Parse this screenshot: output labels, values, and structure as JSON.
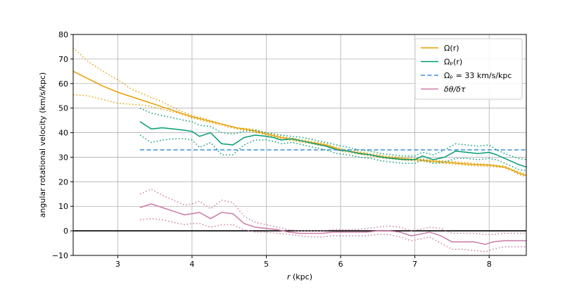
{
  "chart_data": {
    "type": "line",
    "xlabel": "r (kpc)",
    "ylabel": "angular rotational velocity (km/s/kpc)",
    "xlim": [
      2.4,
      8.5
    ],
    "ylim": [
      -10,
      80
    ],
    "xticks": [
      3,
      4,
      5,
      6,
      7,
      8
    ],
    "yticks": [
      -10,
      0,
      10,
      20,
      30,
      40,
      50,
      60,
      70,
      80
    ],
    "grid": true,
    "legend_position": "top-right",
    "colors": {
      "omega": "#e69f00",
      "omega_p": "#009e73",
      "omega_p_const": "#3a8fd8",
      "dtheta": "#cc79a7",
      "zero_line": "#000000",
      "grid": "#b0b0b0"
    },
    "series": [
      {
        "key": "omega",
        "name": "Ω(r)",
        "style": "solid",
        "x": [
          2.4,
          2.6,
          2.8,
          3.0,
          3.2,
          3.4,
          3.6,
          3.8,
          4.0,
          4.2,
          4.4,
          4.6,
          4.8,
          5.0,
          5.2,
          5.4,
          5.6,
          5.8,
          6.0,
          6.2,
          6.4,
          6.6,
          6.8,
          7.0,
          7.2,
          7.4,
          7.6,
          7.8,
          8.0,
          8.2,
          8.3,
          8.4,
          8.5
        ],
        "y": [
          65,
          62,
          59,
          56.5,
          54.5,
          52.5,
          50.5,
          48.5,
          46.5,
          45,
          43.5,
          42,
          41,
          39.5,
          38,
          37,
          36,
          35,
          33,
          32,
          31,
          30,
          29.5,
          29,
          28.5,
          28,
          27.5,
          27,
          26.8,
          26,
          25,
          23.5,
          22.5
        ]
      },
      {
        "key": "omega_upper",
        "style": "dotted",
        "color_ref": "omega",
        "x": [
          2.4,
          2.6,
          2.8,
          3.0,
          3.2,
          3.4,
          3.6,
          3.8,
          4.0,
          4.2,
          4.4,
          4.6,
          4.8,
          5.0,
          5.2,
          5.4,
          5.6,
          5.8,
          6.0,
          6.2,
          6.4,
          6.6,
          6.8,
          7.0,
          7.2,
          7.4,
          7.6,
          7.8,
          8.0,
          8.2,
          8.3,
          8.4,
          8.5
        ],
        "y": [
          74.5,
          69,
          65,
          61.5,
          57.5,
          55,
          52.5,
          49.5,
          47,
          45.5,
          43.5,
          42,
          41.5,
          40,
          38.5,
          37.5,
          36.5,
          35.5,
          33.5,
          32.5,
          31.5,
          30.5,
          30,
          29.5,
          29,
          28.5,
          28,
          27.5,
          27,
          26.5,
          25,
          24,
          23
        ]
      },
      {
        "key": "omega_lower",
        "style": "dotted",
        "color_ref": "omega",
        "x": [
          2.4,
          2.6,
          2.8,
          3.0,
          3.2,
          3.4,
          3.6,
          3.8,
          4.0,
          4.2,
          4.4,
          4.6,
          4.8,
          5.0,
          5.2,
          5.4,
          5.6,
          5.8,
          6.0,
          6.2,
          6.4,
          6.6,
          6.8,
          7.0,
          7.2,
          7.4,
          7.6,
          7.8,
          8.0,
          8.2,
          8.3,
          8.4,
          8.5
        ],
        "y": [
          55.5,
          55,
          53.5,
          52,
          51.5,
          51,
          49.5,
          48,
          46,
          44.5,
          43,
          41.5,
          40.5,
          39,
          37.5,
          36.5,
          35.5,
          34.5,
          32.5,
          31.5,
          30.5,
          29.5,
          29,
          28.5,
          28,
          27.5,
          27,
          26.5,
          26.3,
          25.8,
          24.5,
          23,
          22
        ]
      },
      {
        "key": "omega_p",
        "name": "Ωₚ(r)",
        "style": "solid",
        "x": [
          3.3,
          3.45,
          3.6,
          3.75,
          3.9,
          4.0,
          4.1,
          4.25,
          4.4,
          4.55,
          4.7,
          4.85,
          5.0,
          5.1,
          5.2,
          5.35,
          5.5,
          5.65,
          5.8,
          5.95,
          6.1,
          6.25,
          6.4,
          6.55,
          6.7,
          6.85,
          7.0,
          7.1,
          7.25,
          7.4,
          7.55,
          7.7,
          7.85,
          8.0,
          8.1,
          8.25,
          8.4,
          8.5
        ],
        "y": [
          44.5,
          41.5,
          42,
          41.5,
          41,
          40.5,
          38.5,
          40,
          35.5,
          35,
          38,
          39,
          38.5,
          38,
          37,
          37.5,
          36.5,
          35.5,
          34.5,
          33,
          32.5,
          31.5,
          31,
          30,
          29.5,
          29,
          29,
          30.5,
          29,
          30,
          32.5,
          32,
          31.5,
          32,
          31,
          29,
          27,
          26
        ]
      },
      {
        "key": "omega_p_upper",
        "style": "dotted",
        "color_ref": "omega_p",
        "x": [
          3.3,
          3.45,
          3.6,
          3.75,
          3.9,
          4.0,
          4.1,
          4.25,
          4.4,
          4.55,
          4.7,
          4.85,
          5.0,
          5.1,
          5.2,
          5.35,
          5.5,
          5.65,
          5.8,
          5.95,
          6.1,
          6.25,
          6.4,
          6.55,
          6.7,
          6.85,
          7.0,
          7.1,
          7.25,
          7.4,
          7.55,
          7.7,
          7.85,
          8.0,
          8.1,
          8.25,
          8.4,
          8.5
        ],
        "y": [
          50,
          48,
          47,
          46,
          45,
          44.5,
          43,
          42.5,
          40,
          39.5,
          40.5,
          41,
          40,
          39.5,
          39,
          38.5,
          38,
          37,
          36,
          35,
          34,
          33,
          32.5,
          31.5,
          31,
          30.5,
          30.5,
          32,
          31,
          33,
          35.5,
          35,
          34.5,
          35,
          33,
          31,
          29.5,
          29
        ]
      },
      {
        "key": "omega_p_lower",
        "style": "dotted",
        "color_ref": "omega_p",
        "x": [
          3.3,
          3.45,
          3.6,
          3.75,
          3.9,
          4.0,
          4.1,
          4.25,
          4.4,
          4.55,
          4.7,
          4.85,
          5.0,
          5.1,
          5.2,
          5.35,
          5.5,
          5.65,
          5.8,
          5.95,
          6.1,
          6.25,
          6.4,
          6.55,
          6.7,
          6.85,
          7.0,
          7.1,
          7.25,
          7.4,
          7.55,
          7.7,
          7.85,
          8.0,
          8.1,
          8.25,
          8.4,
          8.5
        ],
        "y": [
          39,
          36,
          37,
          37.5,
          37.5,
          37,
          34,
          36,
          31,
          31,
          35,
          37,
          37,
          36.5,
          35.5,
          36,
          35,
          34,
          33,
          31.5,
          31,
          30,
          29.5,
          28.5,
          28,
          27.5,
          27.5,
          29,
          27.5,
          28,
          29.5,
          29.5,
          29,
          29.5,
          29,
          27,
          25,
          24.5
        ]
      },
      {
        "key": "omega_p_const",
        "name": "Ωₚ = 33 km/s/kpc",
        "style": "dashed",
        "x": [
          3.3,
          8.5
        ],
        "y": [
          33,
          33
        ]
      },
      {
        "key": "dtheta",
        "name": "δθ/δτ",
        "style": "solid",
        "x": [
          3.3,
          3.45,
          3.6,
          3.75,
          3.9,
          4.0,
          4.1,
          4.25,
          4.4,
          4.55,
          4.7,
          4.85,
          5.0,
          5.15,
          5.3,
          5.45,
          5.6,
          5.75,
          5.9,
          6.05,
          6.2,
          6.35,
          6.5,
          6.65,
          6.8,
          6.95,
          7.05,
          7.2,
          7.35,
          7.5,
          7.65,
          7.8,
          7.95,
          8.05,
          8.2,
          8.35,
          8.5
        ],
        "y": [
          9.5,
          11,
          9.5,
          8,
          6.5,
          7,
          7.5,
          5,
          7.5,
          7,
          3,
          1.5,
          1,
          0.5,
          -0.5,
          -1,
          -1,
          -1,
          -0.5,
          -0.5,
          -0.5,
          -0.5,
          0,
          0,
          -0.5,
          -2,
          -1.5,
          -0.5,
          -2,
          -4.5,
          -4.5,
          -4.5,
          -5.5,
          -4.5,
          -4,
          -4,
          -4
        ]
      },
      {
        "key": "dtheta_upper",
        "style": "dotted",
        "color_ref": "dtheta",
        "x": [
          3.3,
          3.45,
          3.6,
          3.75,
          3.9,
          4.0,
          4.1,
          4.25,
          4.4,
          4.55,
          4.7,
          4.85,
          5.0,
          5.15,
          5.3,
          5.45,
          5.6,
          5.75,
          5.9,
          6.05,
          6.2,
          6.35,
          6.5,
          6.65,
          6.8,
          6.95,
          7.05,
          7.2,
          7.35,
          7.5,
          7.65,
          7.8,
          7.95,
          8.05,
          8.2,
          8.35,
          8.5
        ],
        "y": [
          15,
          17,
          14.5,
          12.5,
          10.5,
          11,
          12,
          9,
          12.5,
          11.5,
          6,
          3.5,
          2.5,
          1.5,
          0.5,
          0,
          0,
          0,
          0.5,
          0.5,
          0.5,
          1,
          1.5,
          2,
          1.5,
          0,
          0.5,
          1.5,
          1,
          -1,
          -1,
          -1,
          -1.5,
          -1.5,
          -1,
          -1,
          -1
        ]
      },
      {
        "key": "dtheta_lower",
        "style": "dotted",
        "color_ref": "dtheta",
        "x": [
          3.3,
          3.45,
          3.6,
          3.75,
          3.9,
          4.0,
          4.1,
          4.25,
          4.4,
          4.55,
          4.7,
          4.85,
          5.0,
          5.15,
          5.3,
          5.45,
          5.6,
          5.75,
          5.9,
          6.05,
          6.2,
          6.35,
          6.5,
          6.65,
          6.8,
          6.95,
          7.05,
          7.2,
          7.35,
          7.5,
          7.65,
          7.8,
          7.95,
          8.05,
          8.2,
          8.35,
          8.5
        ],
        "y": [
          4.5,
          5,
          4.5,
          3.5,
          2.5,
          3,
          3,
          1.5,
          2.5,
          2.5,
          0.5,
          -0.5,
          -0.5,
          -1,
          -1.5,
          -2,
          -2.5,
          -2.5,
          -2,
          -2,
          -2,
          -2,
          -1.5,
          -1.5,
          -2.5,
          -4,
          -3.5,
          -2.5,
          -5,
          -7.5,
          -7.5,
          -8,
          -8.5,
          -7.5,
          -6.5,
          -6.5,
          -6.5
        ]
      }
    ],
    "reference_lines": [
      {
        "key": "zero",
        "y": 0,
        "color_ref": "zero_line"
      }
    ]
  }
}
